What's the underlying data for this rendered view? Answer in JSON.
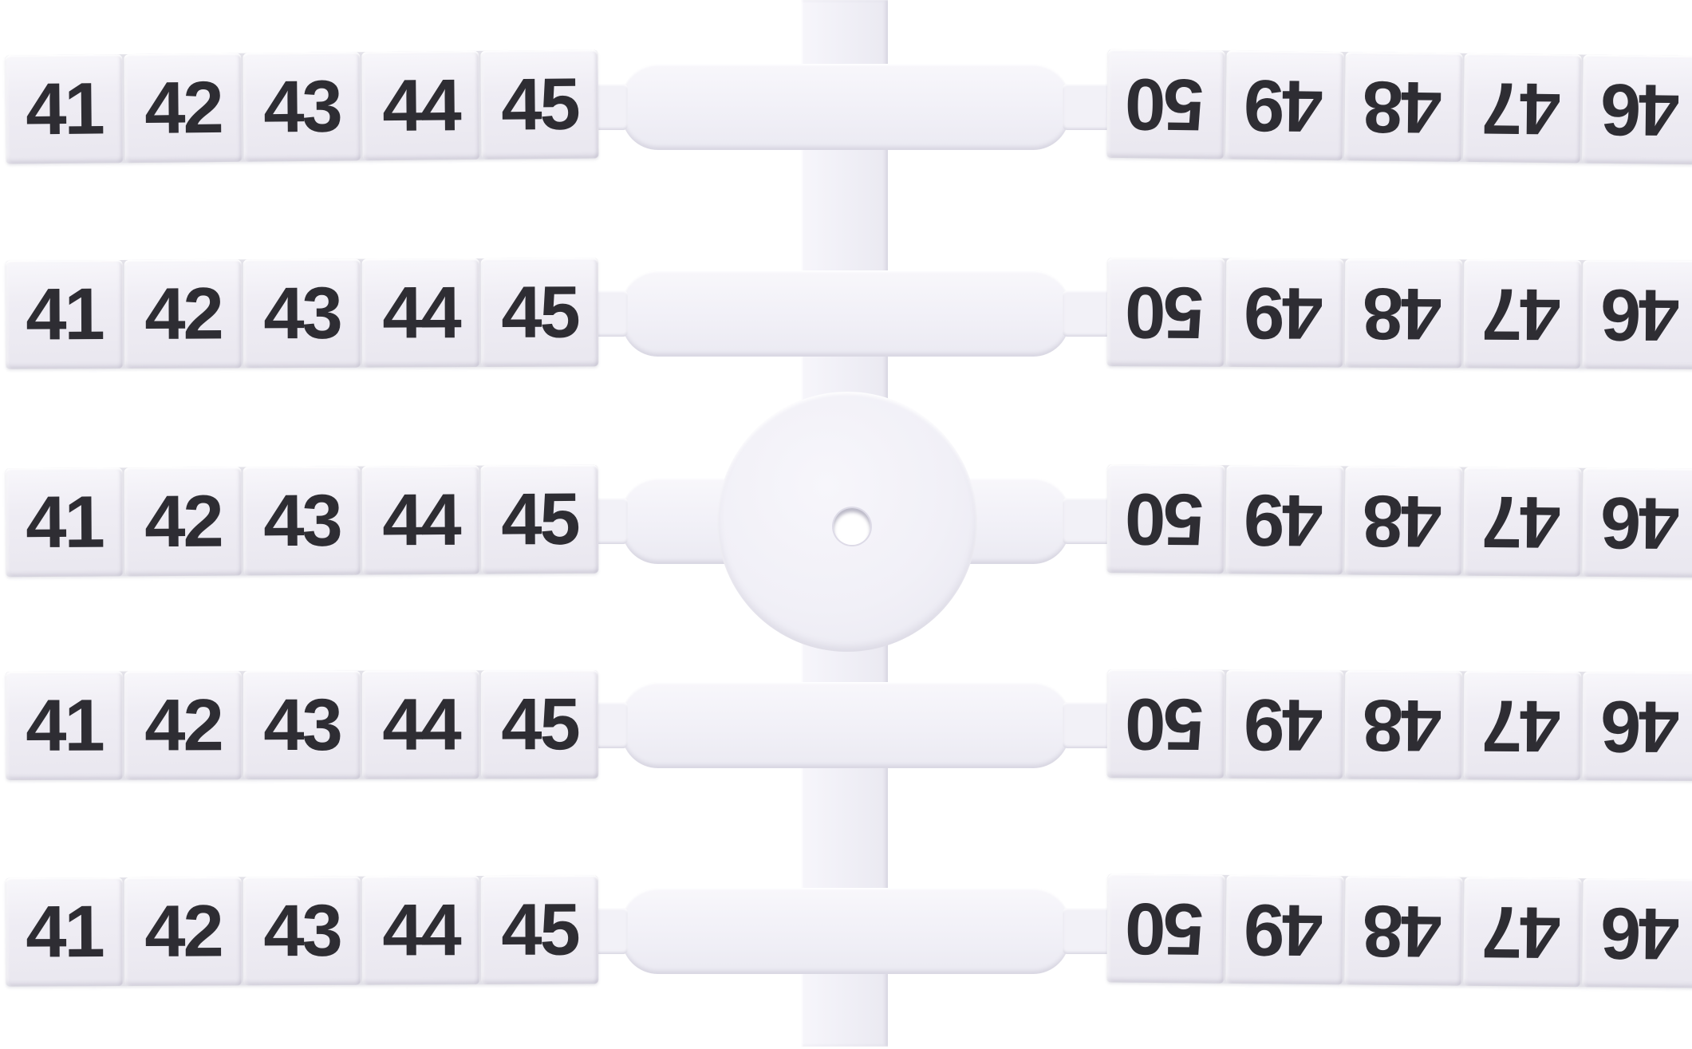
{
  "scene": {
    "description": "White plastic sprue sheet of snap-off terminal block marker tags photographed on a white background",
    "rows_count": 5,
    "tags_per_strip": 5,
    "center_disc_has_hole": true,
    "right_labels_rotation_deg": 180
  },
  "marker_rows": [
    {
      "left": [
        "41",
        "42",
        "43",
        "44",
        "45"
      ],
      "right": [
        "50",
        "49",
        "48",
        "47",
        "46"
      ]
    },
    {
      "left": [
        "41",
        "42",
        "43",
        "44",
        "45"
      ],
      "right": [
        "50",
        "49",
        "48",
        "47",
        "46"
      ]
    },
    {
      "left": [
        "41",
        "42",
        "43",
        "44",
        "45"
      ],
      "right": [
        "50",
        "49",
        "48",
        "47",
        "46"
      ]
    },
    {
      "left": [
        "41",
        "42",
        "43",
        "44",
        "45"
      ],
      "right": [
        "50",
        "49",
        "48",
        "47",
        "46"
      ]
    },
    {
      "left": [
        "41",
        "42",
        "43",
        "44",
        "45"
      ],
      "right": [
        "50",
        "49",
        "48",
        "47",
        "46"
      ]
    }
  ],
  "colors": {
    "background": "#ffffff",
    "plastic": "#f2f1f7",
    "tile_face": "#edebf2",
    "seam": "#cbc9d6",
    "digits": "#2e2d33"
  }
}
